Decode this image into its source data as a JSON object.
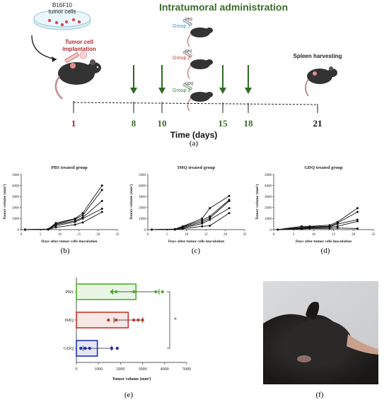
{
  "timeline": {
    "title": "Intratumoral administration",
    "dish_label_line1": "B16F10",
    "dish_label_line2": "tumor cells",
    "implant_label_line1": "Tumor cell",
    "implant_label_line2": "implantation",
    "group1": "Group 1",
    "group2": "Group 2",
    "group3": "Group 3",
    "syringe1": "PBS",
    "syringe2": "IMQ",
    "syringe3": "GDQ",
    "spleen_label": "Spleen harvesting",
    "days": [
      "1",
      "8",
      "10",
      "15",
      "18",
      "21"
    ],
    "xaxis_label": "Time (days)",
    "colors": {
      "title": "#3a6b2a",
      "day_red": "#b3262b",
      "day_green": "#3a6b2a",
      "group1": "#3d8fc4",
      "group2": "#c0392b",
      "group3": "#3a7d3a",
      "arrow": "#2f6a23"
    }
  },
  "panel_labels": [
    "(a)",
    "(b)",
    "(c)",
    "(d)",
    "(e)",
    "(f)"
  ],
  "chart_data": [
    {
      "type": "line",
      "title": "PBS treated group",
      "xlabel": "Days after tumor cells inoculation",
      "ylabel": "Tumor volume (mm³)",
      "xticks": [
        "0",
        "5",
        "10",
        "15",
        "20",
        "25"
      ],
      "yticks": [
        "0",
        "1000",
        "2000",
        "3000",
        "4000",
        "5000"
      ],
      "xlim": [
        0,
        25
      ],
      "ylim": [
        0,
        5000
      ],
      "x": [
        1,
        7,
        9,
        14,
        16,
        21
      ],
      "series": [
        {
          "values": [
            0,
            50,
            600,
            1000,
            1500,
            4000
          ]
        },
        {
          "values": [
            0,
            40,
            500,
            950,
            1300,
            3600
          ]
        },
        {
          "values": [
            0,
            30,
            450,
            800,
            1100,
            2600
          ]
        },
        {
          "values": [
            0,
            20,
            350,
            700,
            1000,
            1900
          ]
        },
        {
          "values": [
            0,
            10,
            200,
            450,
            650,
            1600
          ]
        }
      ]
    },
    {
      "type": "line",
      "title": "IMQ treated group",
      "xlabel": "Days after tumor cells inoculation",
      "ylabel": "Tumor volume (mm³)",
      "xticks": [
        "0",
        "5",
        "10",
        "15",
        "20",
        "25"
      ],
      "yticks": [
        "0",
        "1000",
        "2000",
        "3000",
        "4000",
        "5000"
      ],
      "xlim": [
        0,
        25
      ],
      "ylim": [
        0,
        5000
      ],
      "x": [
        1,
        7,
        9,
        14,
        16,
        21
      ],
      "series": [
        {
          "values": [
            0,
            50,
            300,
            1000,
            1950,
            3050
          ]
        },
        {
          "values": [
            0,
            40,
            250,
            850,
            1200,
            2700
          ]
        },
        {
          "values": [
            0,
            30,
            200,
            700,
            1050,
            2600
          ]
        },
        {
          "values": [
            0,
            20,
            150,
            550,
            900,
            1950
          ]
        },
        {
          "values": [
            0,
            10,
            80,
            300,
            350,
            1500
          ]
        }
      ]
    },
    {
      "type": "line",
      "title": "GDQ treated group",
      "xlabel": "Days after tumor cells inoculation",
      "ylabel": "Tumor volume (mm³)",
      "xticks": [
        "0",
        "5",
        "10",
        "15",
        "20",
        "25"
      ],
      "yticks": [
        "0",
        "1000",
        "2000",
        "3000",
        "4000",
        "5000"
      ],
      "xlim": [
        0,
        25
      ],
      "ylim": [
        0,
        5000
      ],
      "x": [
        1,
        7,
        9,
        14,
        16,
        21
      ],
      "series": [
        {
          "values": [
            0,
            300,
            300,
            400,
            700,
            1950
          ]
        },
        {
          "values": [
            0,
            200,
            250,
            300,
            600,
            1600
          ]
        },
        {
          "values": [
            0,
            150,
            200,
            250,
            500,
            900
          ]
        },
        {
          "values": [
            0,
            100,
            150,
            200,
            300,
            750
          ]
        },
        {
          "values": [
            0,
            50,
            100,
            100,
            150,
            100
          ]
        }
      ]
    },
    {
      "type": "bar",
      "orientation": "horizontal",
      "categories": [
        "PBS",
        "IMQ",
        "GDQ"
      ],
      "values": [
        2700,
        2350,
        950
      ],
      "errors": [
        1050,
        650,
        650
      ],
      "points": [
        [
          1600,
          1800,
          2600,
          3600,
          3900
        ],
        [
          1450,
          1800,
          2600,
          2800,
          3000
        ],
        [
          200,
          400,
          600,
          1600,
          1850
        ]
      ],
      "xlabel": "Tumor volume (mm³)",
      "xticks": [
        "0",
        "1000",
        "2000",
        "3000",
        "4000",
        "5000"
      ],
      "xlim": [
        0,
        5000
      ],
      "significance": "*",
      "colors": {
        "PBS": "#4caf2a",
        "IMQ": "#c0392b",
        "GDQ": "#1f2fb5"
      }
    }
  ]
}
